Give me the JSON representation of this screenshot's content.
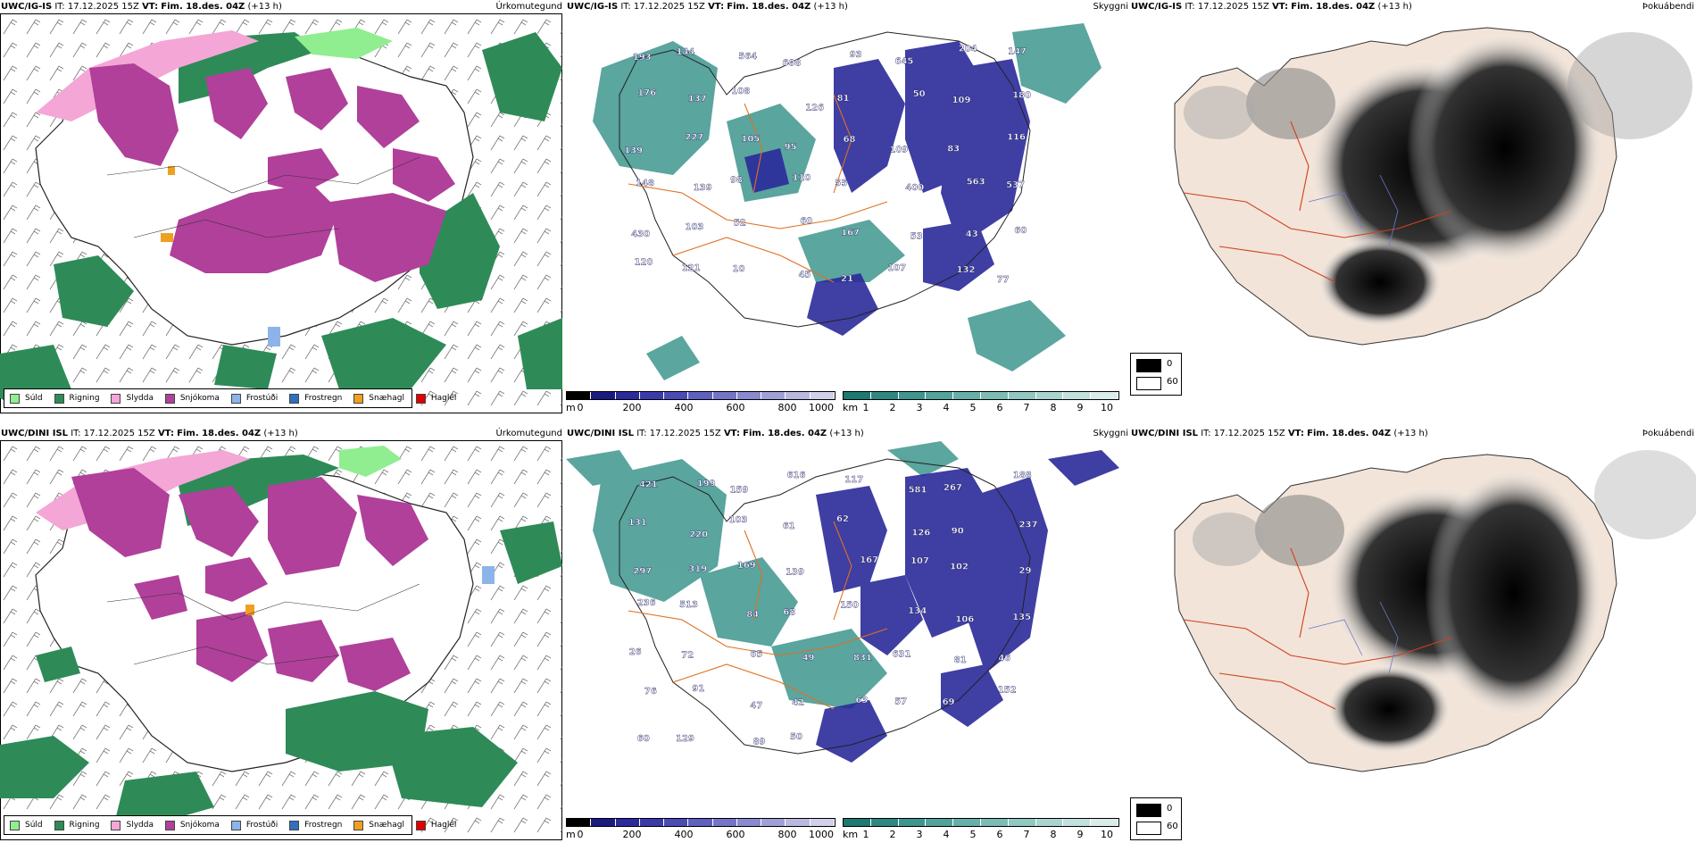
{
  "panels": [
    {
      "model": "UWC/IG-IS",
      "it_label": "IT:",
      "it": "17.12.2025 15Z",
      "vt_label": "VT:",
      "vt": "Fim. 18.des. 04Z",
      "lead": "(+13 h)",
      "field": "Úrkomutegund"
    },
    {
      "model": "UWC/IG-IS",
      "it_label": "IT:",
      "it": "17.12.2025 15Z",
      "vt_label": "VT:",
      "vt": "Fim. 18.des. 04Z",
      "lead": "(+13 h)",
      "field": "Skyggni"
    },
    {
      "model": "UWC/IG-IS",
      "it_label": "IT:",
      "it": "17.12.2025 15Z",
      "vt_label": "VT:",
      "vt": "Fim. 18.des. 04Z",
      "lead": "(+13 h)",
      "field": "Þokuábendi"
    },
    {
      "model": "UWC/DINI ISL",
      "it_label": "IT:",
      "it": "17.12.2025 15Z",
      "vt_label": "VT:",
      "vt": "Fim. 18.des. 04Z",
      "lead": "(+13 h)",
      "field": "Úrkomutegund"
    },
    {
      "model": "UWC/DINI ISL",
      "it_label": "IT:",
      "it": "17.12.2025 15Z",
      "vt_label": "VT:",
      "vt": "Fim. 18.des. 04Z",
      "lead": "(+13 h)",
      "field": "Skyggni"
    },
    {
      "model": "UWC/DINI ISL",
      "it_label": "IT:",
      "it": "17.12.2025 15Z",
      "vt_label": "VT:",
      "vt": "Fim. 18.des. 04Z",
      "lead": "(+13 h)",
      "field": "Þokuábendi"
    }
  ],
  "precip_legend": [
    {
      "label": "Súld",
      "color": "#90ee90"
    },
    {
      "label": "Rigning",
      "color": "#2e8b57"
    },
    {
      "label": "Slydda",
      "color": "#f4a6d7"
    },
    {
      "label": "Snjókoma",
      "color": "#b0409a"
    },
    {
      "label": "Frostúði",
      "color": "#8db4e8"
    },
    {
      "label": "Frostregn",
      "color": "#2f6fbf"
    },
    {
      "label": "Snæhagl",
      "color": "#f0a020"
    },
    {
      "label": "Haglél",
      "color": "#e00000"
    }
  ],
  "ceiling_scale": {
    "unit": "m",
    "ticks": [
      "0",
      "200",
      "400",
      "600",
      "800",
      "1000"
    ],
    "colors": [
      "#000000",
      "#1a1a80",
      "#2a2a9a",
      "#3a3aaa",
      "#4b4bb5",
      "#6060c0",
      "#7575c8",
      "#8a8ad0",
      "#a0a0d8",
      "#b8b8e0",
      "#d0d0ea"
    ]
  },
  "visibility_scale": {
    "unit": "km",
    "ticks": [
      "1",
      "2",
      "3",
      "4",
      "5",
      "6",
      "7",
      "8",
      "9",
      "10"
    ],
    "colors": [
      "#1c7a70",
      "#2e8880",
      "#3e968e",
      "#52a39b",
      "#66b0a8",
      "#7cbcb5",
      "#92c8c2",
      "#aad4cf",
      "#c2e0dc",
      "#daece9"
    ]
  },
  "fog_legend": [
    {
      "label": "0",
      "color": "#000000"
    },
    {
      "label": "60",
      "color": "#ffffff"
    }
  ],
  "ceiling_labels": {
    "top": [
      "193",
      "144",
      "564",
      "608",
      "93",
      "645",
      "204",
      "147",
      "176",
      "137",
      "108",
      "126",
      "81",
      "50",
      "109",
      "180",
      "139",
      "227",
      "105",
      "95",
      "68",
      "109",
      "83",
      "116",
      "148",
      "139",
      "98",
      "110",
      "55",
      "400",
      "563",
      "537",
      "430",
      "103",
      "52",
      "60",
      "167",
      "53",
      "43",
      "60",
      "120",
      "121",
      "10",
      "45",
      "21",
      "107",
      "132",
      "77"
    ],
    "bottom": [
      "421",
      "199",
      "159",
      "616",
      "117",
      "581",
      "267",
      "188",
      "131",
      "220",
      "103",
      "61",
      "62",
      "126",
      "90",
      "237",
      "297",
      "319",
      "169",
      "139",
      "167",
      "107",
      "102",
      "29",
      "236",
      "513",
      "84",
      "68",
      "150",
      "134",
      "106",
      "135",
      "26",
      "72",
      "65",
      "49",
      "831",
      "631",
      "81",
      "46",
      "76",
      "91",
      "47",
      "42",
      "63",
      "57",
      "69",
      "152",
      "60",
      "129",
      "89",
      "50"
    ]
  }
}
